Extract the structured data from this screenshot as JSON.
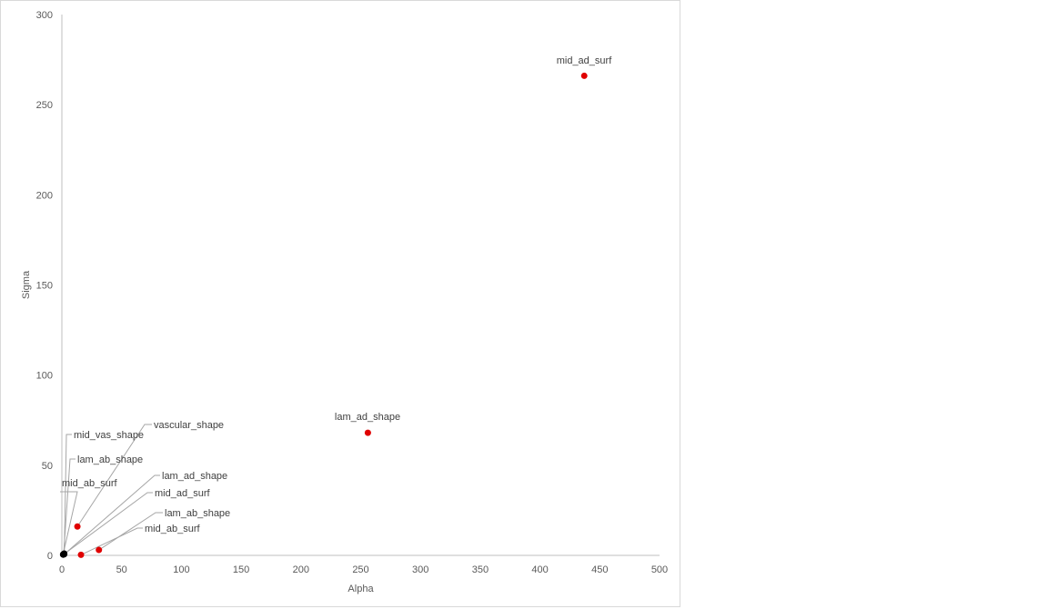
{
  "chart_data": {
    "type": "scatter",
    "title": "",
    "xlabel": "Alpha",
    "ylabel": "Sigma",
    "xlim": [
      0,
      500
    ],
    "ylim": [
      0,
      300
    ],
    "xticks": [
      0,
      50,
      100,
      150,
      200,
      250,
      300,
      350,
      400,
      450,
      500
    ],
    "yticks": [
      0,
      50,
      100,
      150,
      200,
      250,
      300
    ],
    "grid": false,
    "legend": "none",
    "colors": {
      "highlight": "#e00000",
      "cluster": "#000000",
      "leader": "#a6a6a6"
    },
    "points": [
      {
        "label": "mid_ad_surf",
        "x": 437,
        "y": 266,
        "color": "#e00000"
      },
      {
        "label": "lam_ad_shape",
        "x": 256,
        "y": 68,
        "color": "#e00000"
      },
      {
        "label": "vascular_shape",
        "x": 13,
        "y": 16,
        "color": "#e00000"
      },
      {
        "label": "lam_ab_shape",
        "x": 31,
        "y": 3,
        "color": "#e00000"
      },
      {
        "label": "mid_ab_surf",
        "x": 16,
        "y": 0.3,
        "color": "#e00000"
      },
      {
        "label": "mid_vas_shape",
        "x": 2,
        "y": 1,
        "color": "#000000"
      },
      {
        "label": "lam_ab_shape",
        "x": 1.5,
        "y": 0.8,
        "color": "#000000"
      },
      {
        "label": "mid_ab_surf",
        "x": 1,
        "y": 0.5,
        "color": "#000000"
      },
      {
        "label": "lam_ad_shape",
        "x": 2,
        "y": 0.6,
        "color": "#000000"
      },
      {
        "label": "mid_ad_surf",
        "x": 1.2,
        "y": 0.4,
        "color": "#000000"
      }
    ]
  }
}
